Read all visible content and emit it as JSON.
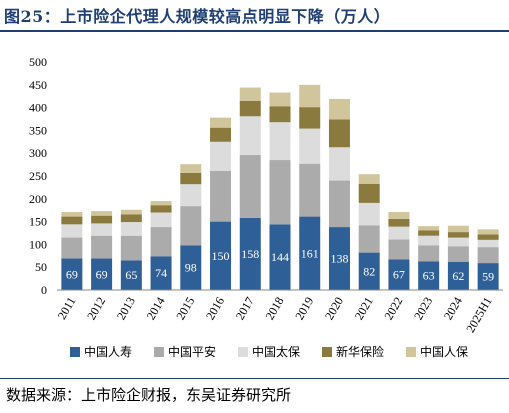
{
  "title": "图25：上市险企代理人规模较高点明显下降（万人）",
  "source": "数据来源：上市险企财报，东吴证券研究所",
  "chart_data": {
    "type": "bar",
    "stacked": true,
    "categories": [
      "2011",
      "2012",
      "2013",
      "2014",
      "2015",
      "2016",
      "2017",
      "2018",
      "2019",
      "2020",
      "2021",
      "2022",
      "2023",
      "2024",
      "2025H1"
    ],
    "ylim": [
      0,
      500
    ],
    "yticks": [
      0,
      50,
      100,
      150,
      200,
      250,
      300,
      350,
      400,
      450,
      500
    ],
    "legend_position": "bottom",
    "series": [
      {
        "name": "中国人寿",
        "color": "#2e5f96",
        "values": [
          69,
          69,
          65,
          74,
          98,
          150,
          158,
          144,
          161,
          138,
          82,
          67,
          63,
          62,
          59
        ],
        "labels": [
          "69",
          "69",
          "65",
          "74",
          "98",
          "150",
          "158",
          "144",
          "161",
          "138",
          "82",
          "67",
          "63",
          "62",
          "59"
        ]
      },
      {
        "name": "中国平安",
        "color": "#ababab",
        "values": [
          46,
          50,
          54,
          64,
          86,
          111,
          138,
          141,
          116,
          102,
          60,
          44,
          35,
          34,
          35
        ]
      },
      {
        "name": "中国太保",
        "color": "#dcdcdc",
        "values": [
          29,
          27,
          30,
          32,
          48,
          64,
          85,
          83,
          77,
          73,
          49,
          28,
          21,
          19,
          16
        ]
      },
      {
        "name": "新华保险",
        "color": "#8b7a3e",
        "values": [
          17,
          17,
          17,
          16,
          25,
          31,
          34,
          35,
          47,
          61,
          42,
          17,
          12,
          12,
          12
        ]
      },
      {
        "name": "中国人保",
        "color": "#d1c59c",
        "values": [
          10,
          10,
          10,
          9,
          19,
          22,
          29,
          30,
          49,
          45,
          21,
          15,
          9,
          14,
          11
        ]
      }
    ]
  }
}
